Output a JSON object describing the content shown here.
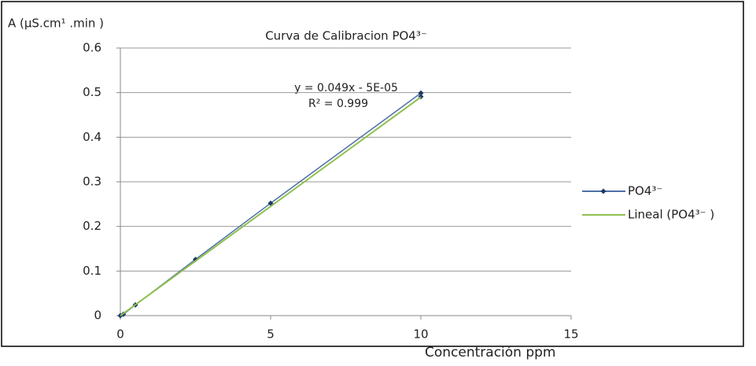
{
  "chart_data": {
    "type": "scatter",
    "title": "Curva de Calibracion PO4³⁻",
    "y_label": "A (µS.cm¹ .min )",
    "x_label": "Concentración ppm",
    "annotations": [
      "y = 0.049x - 5E-05",
      "R² = 0.999"
    ],
    "series": [
      {
        "name": "PO4³⁻",
        "color": "#4f6fa8",
        "marker_color": "#1f3a68",
        "x": [
          0,
          0.1,
          0.5,
          2.5,
          5,
          10,
          10
        ],
        "values": [
          0,
          0.003,
          0.024,
          0.126,
          0.252,
          0.499,
          0.491
        ]
      },
      {
        "name": "Lineal (PO4³⁻ )",
        "color": "#8fbf4f",
        "x": [
          0,
          10
        ],
        "values": [
          -5e-05,
          0.48995
        ]
      }
    ],
    "xlim": [
      0,
      15
    ],
    "xticks": [
      0,
      5,
      10,
      15
    ],
    "ylim": [
      0,
      0.6
    ],
    "yticks": [
      0,
      0.1,
      0.2,
      0.3,
      0.4,
      0.5,
      0.6
    ],
    "grid": true,
    "legend": "right"
  }
}
